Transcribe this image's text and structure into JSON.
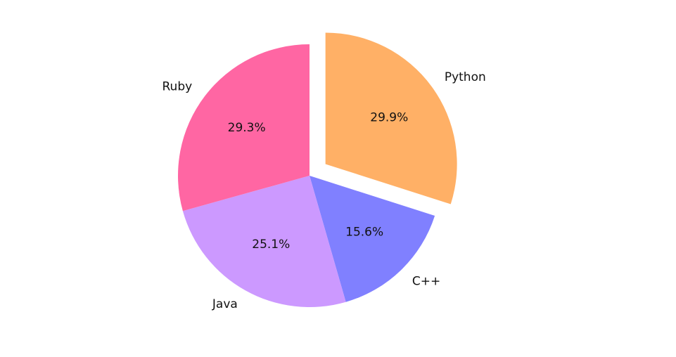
{
  "chart_data": {
    "type": "pie",
    "categories": [
      "Python",
      "C++",
      "Java",
      "Ruby"
    ],
    "values": [
      29.9,
      15.6,
      25.1,
      29.3
    ],
    "value_labels": [
      "29.9%",
      "15.6%",
      "25.1%",
      "29.3%"
    ],
    "colors": [
      "#ffb066",
      "#8080ff",
      "#cc99ff",
      "#ff66a3"
    ],
    "explode": [
      0.15,
      0,
      0,
      0
    ],
    "start_angle": 90,
    "clockwise": true
  }
}
